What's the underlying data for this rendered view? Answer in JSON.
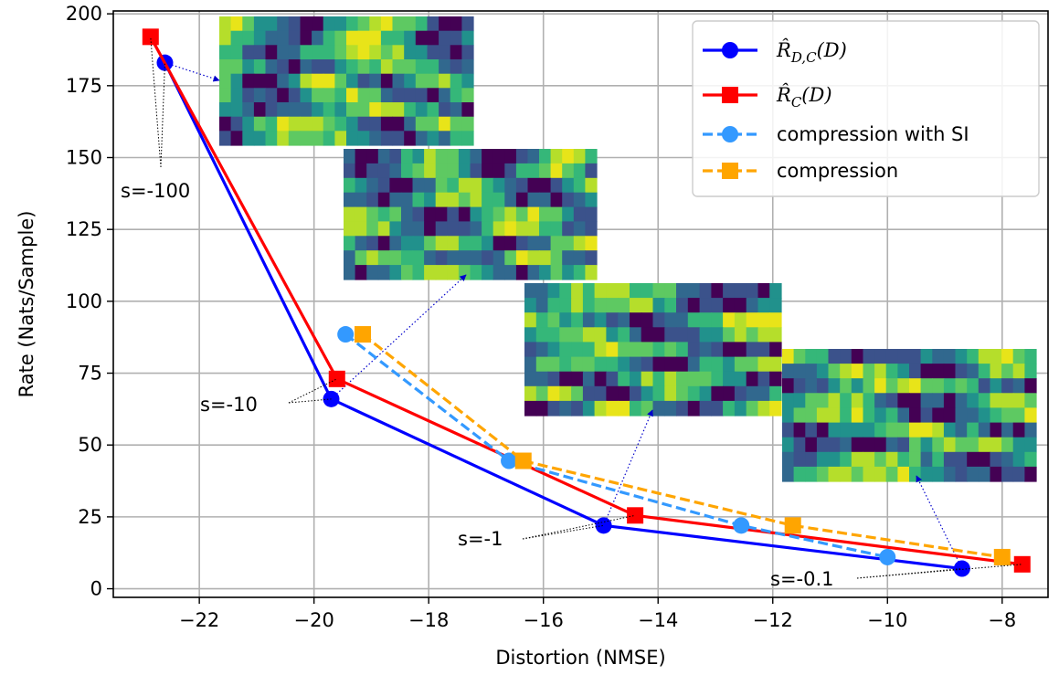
{
  "chart_data": {
    "type": "line",
    "xlabel": "Distortion (NMSE)",
    "ylabel": "Rate (Nats/Sample)",
    "xlim": [
      -23.5,
      -7.2
    ],
    "ylim": [
      -3,
      201
    ],
    "xticks": [
      -22,
      -20,
      -18,
      -16,
      -14,
      -12,
      -10,
      -8
    ],
    "xtick_labels": [
      "−22",
      "−20",
      "−18",
      "−16",
      "−14",
      "−12",
      "−10",
      "−8"
    ],
    "yticks": [
      0,
      25,
      50,
      75,
      100,
      125,
      150,
      175,
      200
    ],
    "ytick_labels": [
      "0",
      "25",
      "50",
      "75",
      "100",
      "125",
      "150",
      "175",
      "200"
    ],
    "grid": true,
    "legend_position": "top-right",
    "series": [
      {
        "name": "R̂D,C(D)",
        "legend_main": "R̂",
        "legend_sub": "D,C",
        "legend_tail": "(D)",
        "color": "#0000ff",
        "line_style": "solid",
        "marker": "circle",
        "x": [
          -22.6,
          -19.7,
          -14.95,
          -8.7
        ],
        "y": [
          183,
          66,
          22,
          7
        ]
      },
      {
        "name": "R̂C(D)",
        "legend_main": "R̂",
        "legend_sub": "C",
        "legend_tail": "(D)",
        "color": "#ff0000",
        "line_style": "solid",
        "marker": "square",
        "x": [
          -22.85,
          -19.6,
          -14.4,
          -7.65
        ],
        "y": [
          192,
          73,
          25.5,
          8.5
        ]
      },
      {
        "name": "compression with SI",
        "color": "#3399ff",
        "line_style": "dashed",
        "marker": "circle",
        "x": [
          -19.45,
          -16.6,
          -12.55,
          -10
        ],
        "y": [
          88.5,
          44.5,
          22,
          11
        ]
      },
      {
        "name": "compression",
        "color": "#ffa500",
        "line_style": "dashed",
        "marker": "square",
        "x": [
          -19.15,
          -16.35,
          -11.65,
          -8
        ],
        "y": [
          88.5,
          44.5,
          22,
          11
        ]
      }
    ],
    "annotations": [
      {
        "text": "s=-100"
      },
      {
        "text": "s=-10"
      },
      {
        "text": "s=-1"
      },
      {
        "text": "s=-0.1"
      }
    ]
  }
}
